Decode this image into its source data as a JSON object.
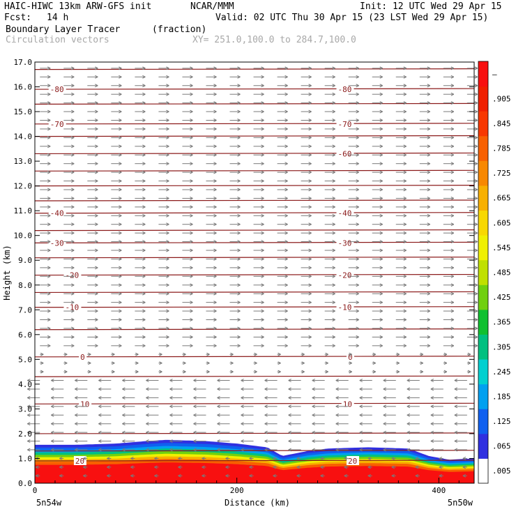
{
  "header": {
    "model": "HAIC-HIWC 13km ARW-GFS init",
    "org": "NCAR/MMM",
    "init": "Init: 12 UTC Wed 29 Apr 15",
    "fcst_label": "Fcst:",
    "fcst_value": "14 h",
    "valid": "Valid: 02 UTC Thu 30 Apr 15 (23 LST Wed 29 Apr 15)",
    "field": "Boundary Layer Tracer",
    "units": "(fraction)",
    "vectors": "Circulation vectors",
    "xy": "XY= 251.0,100.0 to 284.7,100.0"
  },
  "colors": {
    "contour": "#8b1a1a",
    "vector": "#7a7a7a",
    "colorbar": [
      "#ffffff",
      "#3030e0",
      "#1060f0",
      "#00a0f0",
      "#00d0d0",
      "#00c080",
      "#10c030",
      "#70d010",
      "#c0e000",
      "#f0f000",
      "#f8d800",
      "#f8b000",
      "#f88800",
      "#f86000",
      "#f83800",
      "#f02000",
      "#f81010"
    ]
  },
  "chart_data": {
    "type": "heatmap",
    "xlabel": "Distance (km)",
    "ylabel": "Height (km)",
    "xlim": [
      0,
      435
    ],
    "ylim": [
      0.0,
      17.0
    ],
    "x_ticks": [
      "0",
      "200",
      "400"
    ],
    "x_tick_values": [
      0,
      200,
      400
    ],
    "x_endpoints": [
      "5n54w",
      "5n50w"
    ],
    "y_ticks": [
      "0.0",
      "1.0",
      "2.0",
      "3.0",
      "4.0",
      "5.0",
      "6.0",
      "7.0",
      "8.0",
      "9.0",
      "10.0",
      "11.0",
      "12.0",
      "13.0",
      "14.0",
      "15.0",
      "16.0",
      "17.0"
    ],
    "colorbar_labels": [
      ".005",
      ".065",
      ".125",
      ".185",
      ".245",
      ".305",
      ".365",
      ".425",
      ".485",
      ".545",
      ".605",
      ".665",
      ".725",
      ".785",
      ".845",
      ".905",
      "—"
    ],
    "tracer_top_km": [
      [
        0,
        1.55
      ],
      [
        40,
        1.55
      ],
      [
        80,
        1.6
      ],
      [
        110,
        1.7
      ],
      [
        130,
        1.75
      ],
      [
        170,
        1.7
      ],
      [
        200,
        1.6
      ],
      [
        230,
        1.45
      ],
      [
        245,
        1.1
      ],
      [
        270,
        1.3
      ],
      [
        290,
        1.4
      ],
      [
        330,
        1.45
      ],
      [
        370,
        1.4
      ],
      [
        390,
        1.1
      ],
      [
        410,
        0.95
      ],
      [
        435,
        1.0
      ]
    ],
    "temperature_contours": [
      {
        "label": "-80",
        "height": 15.9,
        "label_x": [
          15,
          300
        ]
      },
      {
        "label": "-70",
        "height": 14.5,
        "label_x": [
          15,
          300
        ]
      },
      {
        "label": "-60",
        "height": 13.3,
        "label_x": [
          300
        ]
      },
      {
        "label": "-40",
        "height": 10.9,
        "label_x": [
          15,
          300
        ]
      },
      {
        "label": "-30",
        "height": 9.7,
        "label_x": [
          15,
          300
        ]
      },
      {
        "label": "-20",
        "height": 8.4,
        "label_x": [
          30,
          300
        ]
      },
      {
        "label": "-10",
        "height": 7.1,
        "label_x": [
          30,
          300
        ]
      },
      {
        "label": "0",
        "height": 5.1,
        "label_x": [
          45,
          310
        ]
      },
      {
        "label": "10",
        "height": 3.2,
        "label_x": [
          45,
          305
        ]
      },
      {
        "label": "20",
        "height": 0.9,
        "label_x": [
          40,
          310
        ]
      }
    ],
    "other_contour_heights": [
      16.7,
      15.3,
      14.0,
      12.6,
      12.0,
      11.4,
      10.2,
      9.1,
      7.7,
      6.2,
      4.3,
      2.0,
      1.3
    ]
  }
}
